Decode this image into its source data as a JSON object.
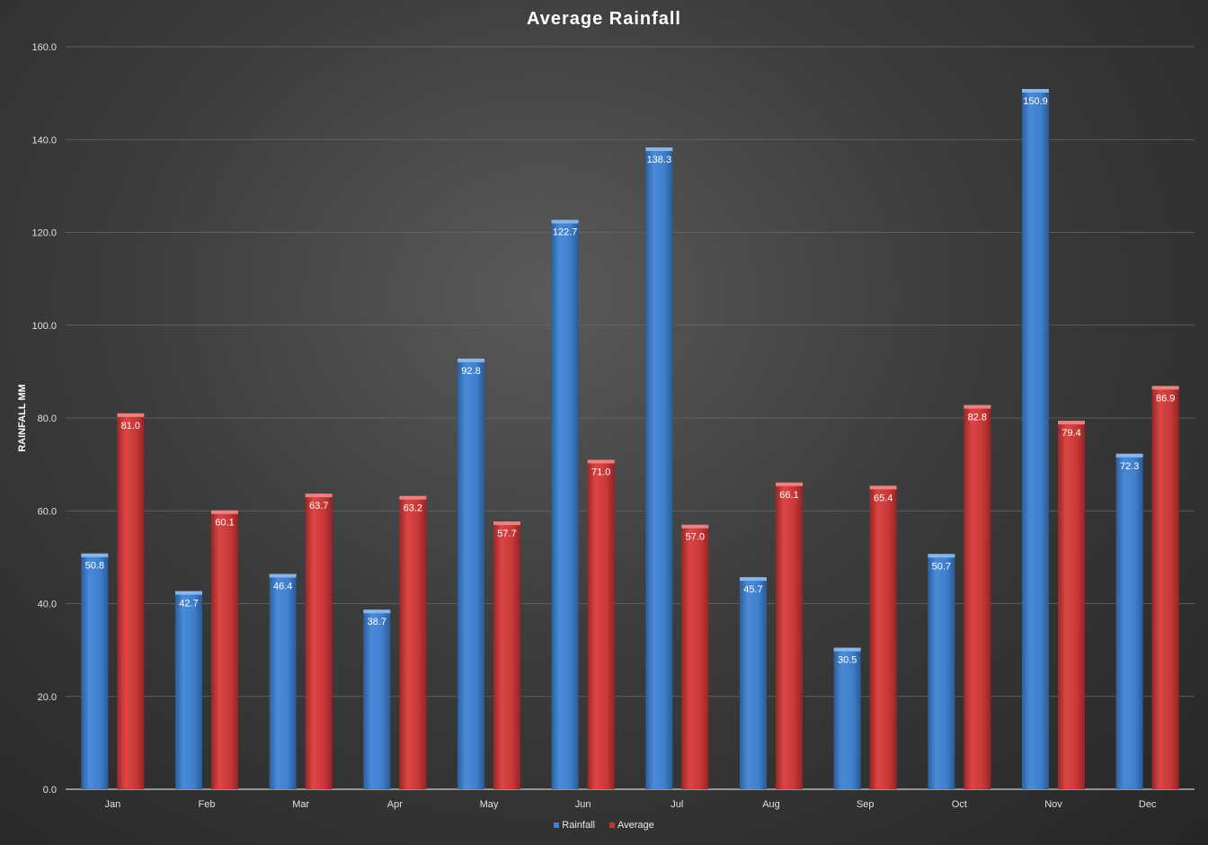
{
  "chart_data": {
    "type": "bar",
    "title": "Average Rainfall",
    "xlabel": "",
    "ylabel": "RAINFALL MM",
    "categories": [
      "Jan",
      "Feb",
      "Mar",
      "Apr",
      "May",
      "Jun",
      "Jul",
      "Aug",
      "Sep",
      "Oct",
      "Nov",
      "Dec"
    ],
    "series": [
      {
        "name": "Rainfall",
        "color": "#3f7fcc",
        "values": [
          50.8,
          42.7,
          46.4,
          38.7,
          92.8,
          122.7,
          138.3,
          45.7,
          30.5,
          50.7,
          150.9,
          72.3
        ]
      },
      {
        "name": "Average",
        "color": "#c83232",
        "values": [
          81.0,
          60.1,
          63.7,
          63.2,
          57.7,
          71.0,
          57.0,
          66.1,
          65.4,
          82.8,
          79.4,
          86.9
        ]
      }
    ],
    "ylim": [
      0,
      160
    ],
    "yticks": [
      "0.0",
      "20.0",
      "40.0",
      "60.0",
      "80.0",
      "100.0",
      "120.0",
      "140.0",
      "160.0"
    ],
    "grid": true,
    "legend_position": "bottom",
    "data_labels": true
  }
}
